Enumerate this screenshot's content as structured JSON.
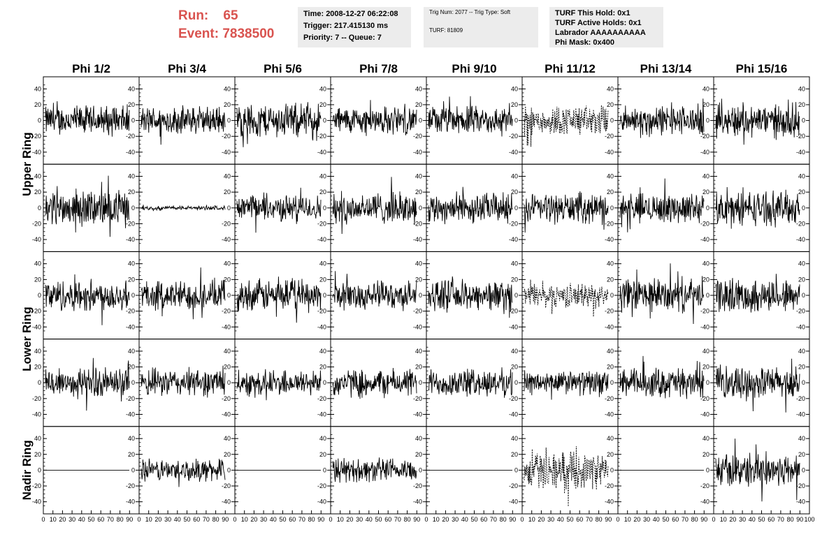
{
  "header": {
    "run_label": "Run:",
    "run_value": "65",
    "event_label": "Event:",
    "event_value": "7838500",
    "time_lines": [
      "Time: 2008-12-27 06:22:08",
      "Trigger: 217.415130 ms",
      "Priority: 7 -- Queue: 7"
    ],
    "trig_lines": [
      "Trig Num: 2077 -- Trig Type: Soft",
      "TURF: 81809"
    ],
    "turf_lines": [
      "TURF This Hold: 0x1",
      "TURF Active Holds: 0x1",
      "Labrador AAAAAAAAAA",
      "Phi Mask: 0x400"
    ]
  },
  "colors": {
    "header_red": "#d9534f",
    "trace": "#000000",
    "box_bg": "#ececec"
  },
  "chart_data": {
    "type": "line",
    "columns": [
      "Phi 1/2",
      "Phi 3/4",
      "Phi 5/6",
      "Phi 7/8",
      "Phi 9/10",
      "Phi 11/12",
      "Phi 13/14",
      "Phi 15/16"
    ],
    "rows": [
      "Upper Ring",
      "Lower Ring",
      "Nadir Ring"
    ],
    "panel_rows": 5,
    "xlim": [
      0,
      100
    ],
    "ylim": [
      -50,
      50
    ],
    "x_ticks": [
      "0",
      "10",
      "20",
      "30",
      "40",
      "50",
      "60",
      "70",
      "80",
      "90",
      "100"
    ],
    "y_ticks": [
      -40,
      -20,
      0,
      20,
      40
    ],
    "series_hint": "waveforms (amplitude vs sample index); dashed traces mark the masked Phi 11/12 channels",
    "panels": [
      [
        {
          "amp": 15
        },
        {
          "amp": 14
        },
        {
          "amp": 17
        },
        {
          "amp": 14
        },
        {
          "amp": 14
        },
        {
          "amp": 15,
          "dashed": true
        },
        {
          "amp": 15
        },
        {
          "amp": 17
        }
      ],
      [
        {
          "amp": 18
        },
        {
          "amp": 2
        },
        {
          "amp": 13
        },
        {
          "amp": 16
        },
        {
          "amp": 15
        },
        {
          "amp": 15
        },
        {
          "amp": 15
        },
        {
          "amp": 17
        }
      ],
      [
        {
          "amp": 16
        },
        {
          "amp": 15
        },
        {
          "amp": 16
        },
        {
          "amp": 14
        },
        {
          "amp": 15
        },
        {
          "amp": 12,
          "dashed": true
        },
        {
          "amp": 17
        },
        {
          "amp": 17
        }
      ],
      [
        {
          "amp": 15
        },
        {
          "amp": 14
        },
        {
          "amp": 13
        },
        {
          "amp": 14
        },
        {
          "amp": 14
        },
        {
          "amp": 12
        },
        {
          "amp": 15
        },
        {
          "amp": 16
        }
      ],
      [
        {
          "amp": 0
        },
        {
          "amp": 11
        },
        {
          "amp": 0
        },
        {
          "amp": 12
        },
        {
          "amp": 0
        },
        {
          "amp": 18,
          "dashed": true
        },
        {
          "amp": 0
        },
        {
          "amp": 17
        }
      ]
    ]
  }
}
